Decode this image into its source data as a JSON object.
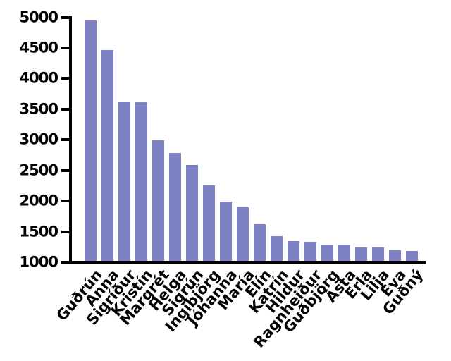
{
  "chart_data": {
    "type": "bar",
    "title": "",
    "xlabel": "",
    "ylabel": "",
    "categories": [
      "Guðrún",
      "Anna",
      "Sigríður",
      "Kristín",
      "Margrét",
      "Helga",
      "Sigrún",
      "Ingibjörg",
      "Jóhanna",
      "María",
      "Elín",
      "Katrín",
      "Hildur",
      "Ragnheiður",
      "Guðbjörg",
      "Ásta",
      "Erla",
      "Lilja",
      "Eva",
      "Guðný"
    ],
    "values": [
      4950,
      4460,
      3620,
      3610,
      2990,
      2780,
      2590,
      2250,
      1990,
      1900,
      1620,
      1430,
      1350,
      1330,
      1290,
      1290,
      1240,
      1240,
      1200,
      1180
    ],
    "ylim": [
      1000,
      5000
    ],
    "yticks": [
      1000,
      1500,
      2000,
      2500,
      3000,
      3500,
      4000,
      4500,
      5000
    ],
    "ytick_labels": [
      "1000",
      "1500",
      "2000",
      "2500",
      "3000",
      "3500",
      "4000",
      "4500",
      "5000"
    ],
    "grid": false,
    "legend": null,
    "bar_color": "#7e82c5",
    "axis_color": "#000000",
    "background_color": "#ffffff",
    "x_label_rotation_deg": 50
  }
}
